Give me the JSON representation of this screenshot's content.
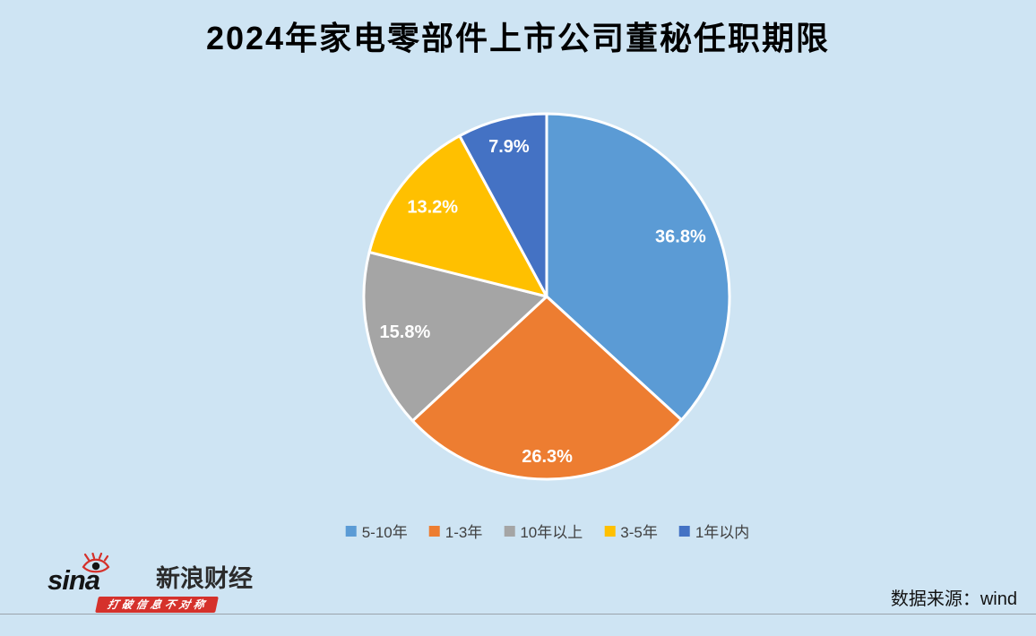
{
  "title": "2024年家电零部件上市公司董秘任职期限",
  "chart_data": {
    "type": "pie",
    "title": "2024年家电零部件上市公司董秘任职期限",
    "unit": "%",
    "direction": "clockwise",
    "start_angle_deg": 0,
    "legend_position": "bottom",
    "label_format": "value%",
    "slices": [
      {
        "label": "5-10年",
        "value": 36.8,
        "color": "#5B9BD5"
      },
      {
        "label": "1-3年",
        "value": 26.3,
        "color": "#ED7D31"
      },
      {
        "label": "10年以上",
        "value": 15.8,
        "color": "#A5A5A5"
      },
      {
        "label": "3-5年",
        "value": 13.2,
        "color": "#FFC000"
      },
      {
        "label": "1年以内",
        "value": 7.9,
        "color": "#4472C4"
      }
    ],
    "label_radius_factors": [
      0.8,
      0.88,
      0.8,
      0.79,
      0.84
    ]
  },
  "footer": {
    "source": "数据来源：wind",
    "brand": {
      "logo_text": "sina",
      "name": "新浪财经",
      "tagline": "打破信息不对称"
    }
  },
  "colors": {
    "background": "#CEE4F3",
    "slice_border": "#FFFFFF",
    "pie_label_text": "#FFFFFF",
    "legend_text": "#404040",
    "divider": "#9BA3AB",
    "brand_red": "#D5312B",
    "title_text": "#000000"
  }
}
